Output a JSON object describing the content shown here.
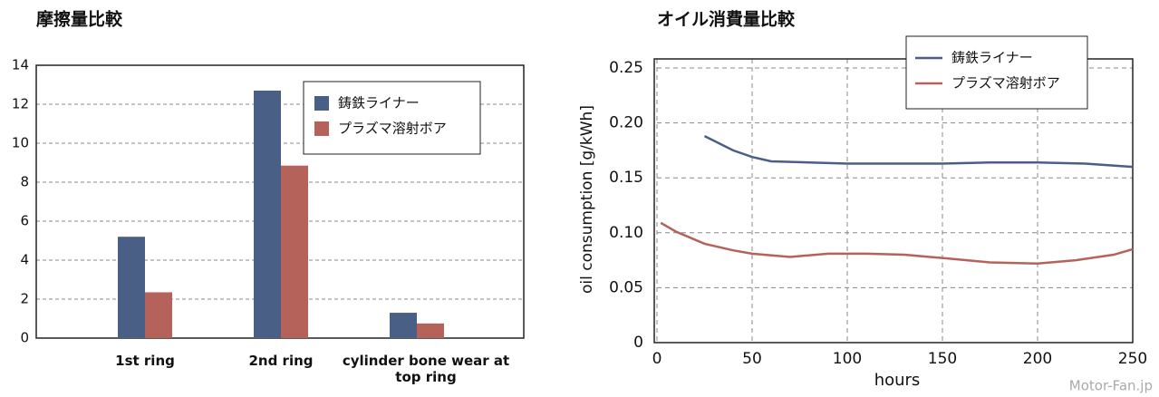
{
  "chart_data": [
    {
      "type": "bar",
      "title": "摩擦量比較",
      "categories": [
        "1st ring",
        "2nd ring",
        "cylinder bone wear at top ring"
      ],
      "series": [
        {
          "name": "鋳鉄ライナー",
          "color": "#4a5f86",
          "values": [
            5.2,
            12.7,
            1.3
          ]
        },
        {
          "name": "プラズマ溶射ボア",
          "color": "#b5625a",
          "values": [
            2.35,
            8.85,
            0.75
          ]
        }
      ],
      "ylim": [
        0,
        14
      ],
      "yticks": [
        0,
        2,
        4,
        6,
        8,
        10,
        12,
        14
      ],
      "grid": true,
      "legend": "upper-right"
    },
    {
      "type": "line",
      "title": "オイル消費量比較",
      "xlabel": "hours",
      "ylabel": "oil consumption [g/kWh]",
      "series": [
        {
          "name": "鋳鉄ライナー",
          "color": "#4a5f86",
          "x": [
            25,
            40,
            50,
            60,
            80,
            100,
            125,
            150,
            175,
            200,
            225,
            250
          ],
          "values": [
            0.188,
            0.175,
            0.169,
            0.165,
            0.164,
            0.163,
            0.163,
            0.163,
            0.164,
            0.164,
            0.163,
            0.16
          ]
        },
        {
          "name": "プラズマ溶射ボア",
          "color": "#b5625a",
          "x": [
            2,
            10,
            25,
            40,
            50,
            70,
            90,
            110,
            130,
            150,
            175,
            200,
            220,
            240,
            250
          ],
          "values": [
            0.109,
            0.101,
            0.09,
            0.084,
            0.081,
            0.078,
            0.081,
            0.081,
            0.08,
            0.077,
            0.073,
            0.072,
            0.075,
            0.08,
            0.085
          ]
        }
      ],
      "xlim": [
        0,
        250
      ],
      "xticks": [
        0,
        50,
        100,
        150,
        200,
        250
      ],
      "ylim": [
        0,
        0.25
      ],
      "yticks": [
        0,
        0.05,
        {
          "value": 0.1,
          "label": "0.10"
        },
        0.15,
        {
          "value": 0.2,
          "label": "0.20"
        },
        0.25
      ],
      "grid": true,
      "legend": "upper-right",
      "watermark": "Motor-Fan.jp"
    }
  ]
}
